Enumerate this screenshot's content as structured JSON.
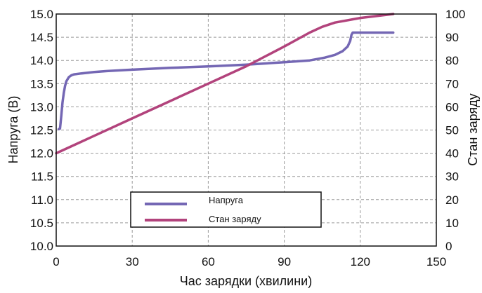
{
  "chart_data": {
    "type": "line",
    "xlabel": "Час зарядки (хвилини)",
    "ylabel_left": "Напруга (В)",
    "ylabel_right": "Стан заряду",
    "xlim": [
      0,
      150
    ],
    "ylim_left": [
      10.0,
      15.0
    ],
    "ylim_right": [
      0,
      100
    ],
    "x_ticks": [
      "0",
      "30",
      "60",
      "90",
      "120",
      "150"
    ],
    "y_left_ticks": [
      "10.0",
      "10.5",
      "11.0",
      "11.5",
      "12.0",
      "12.5",
      "13.0",
      "13.5",
      "14.0",
      "14.5",
      "15.0"
    ],
    "y_right_ticks": [
      "0",
      "10",
      "20",
      "30",
      "40",
      "50",
      "60",
      "70",
      "80",
      "90",
      "100"
    ],
    "grid": true,
    "legend": "bottom-center",
    "series": [
      {
        "name": "Напруга",
        "axis": "left",
        "color": "#7467b4",
        "x": [
          1.0,
          1.5,
          2.0,
          2.5,
          3.0,
          3.5,
          4.0,
          5.0,
          6.0,
          7.0,
          10.0,
          15.0,
          20.0,
          30.0,
          45.0,
          60.0,
          75.0,
          90.0,
          100.0,
          106.0,
          110.0,
          113.0,
          115.0,
          116.0,
          116.5,
          117.0,
          125.0,
          133.0
        ],
        "values": [
          12.52,
          12.53,
          12.8,
          13.1,
          13.3,
          13.45,
          13.55,
          13.64,
          13.68,
          13.7,
          13.72,
          13.75,
          13.77,
          13.8,
          13.84,
          13.87,
          13.91,
          13.96,
          14.0,
          14.06,
          14.12,
          14.2,
          14.3,
          14.42,
          14.55,
          14.6,
          14.6,
          14.6
        ]
      },
      {
        "name": "Стан заряду",
        "axis": "right",
        "color": "#b2437c",
        "x": [
          0.0,
          30.0,
          60.0,
          75.0,
          90.0,
          100.0,
          105.0,
          110.0,
          120.0,
          133.0
        ],
        "values": [
          40.0,
          55.0,
          70.0,
          77.5,
          86.0,
          92.0,
          94.5,
          96.3,
          98.3,
          100.0
        ]
      }
    ]
  }
}
